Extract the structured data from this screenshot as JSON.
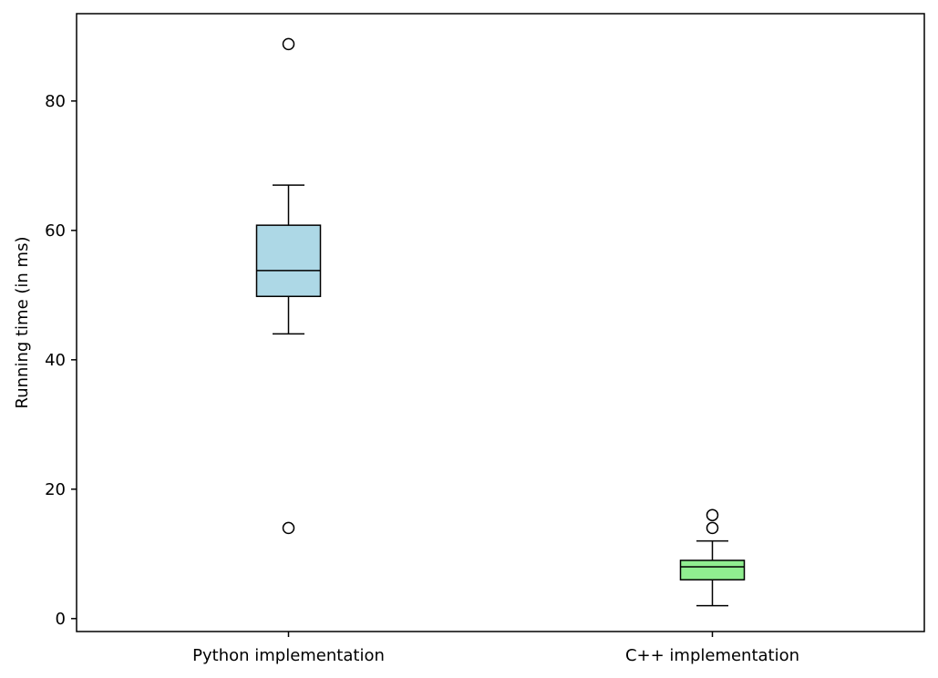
{
  "chart_data": {
    "type": "box",
    "categories": [
      "Python implementation",
      "C++ implementation"
    ],
    "xlabel": "",
    "ylabel": "Running time (in ms)",
    "ylim": [
      -2,
      93.5
    ],
    "yticks": [
      0,
      20,
      40,
      60,
      80
    ],
    "grid": false,
    "legend": "none",
    "boxes": [
      {
        "label": "Python implementation",
        "whisker_low": 44,
        "q1": 49.8,
        "median": 53.8,
        "q3": 60.8,
        "whisker_high": 67,
        "outliers": [
          88.8,
          14
        ],
        "color": "#add8e6"
      },
      {
        "label": "C++ implementation",
        "whisker_low": 2,
        "q1": 6,
        "median": 8,
        "q3": 9,
        "whisker_high": 12,
        "outliers": [
          14,
          16
        ],
        "color": "#90ee90"
      }
    ]
  }
}
